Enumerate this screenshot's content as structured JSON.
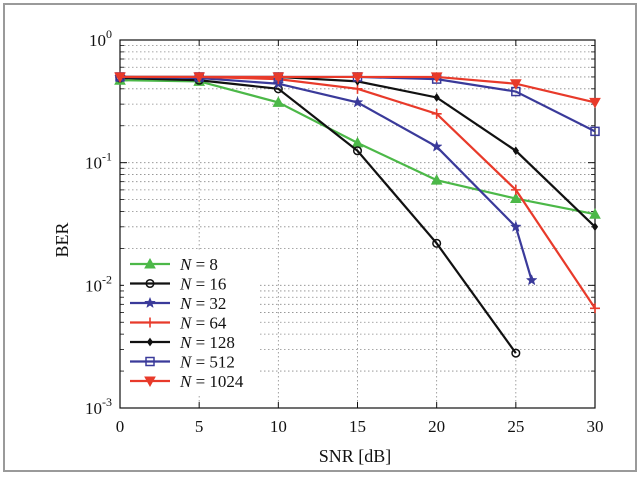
{
  "chart_data": {
    "type": "line",
    "xlabel": "SNR [dB]",
    "ylabel": "BER",
    "xlim": [
      0,
      30
    ],
    "ylim": [
      0.001,
      1
    ],
    "yscale": "log",
    "grid": true,
    "legend_position": "bottom-left",
    "x_ticks": [
      "0",
      "5",
      "10",
      "15",
      "20",
      "25",
      "30"
    ],
    "y_ticks": [
      {
        "base": "10",
        "exp": "0"
      },
      {
        "base": "10",
        "exp": "-1"
      },
      {
        "base": "10",
        "exp": "-2"
      },
      {
        "base": "10",
        "exp": "-3"
      }
    ],
    "series": [
      {
        "name_var": "N",
        "name_value": "= 8",
        "color": "#4cb848",
        "marker": "triangle-up",
        "x": [
          0,
          5,
          10,
          15,
          20,
          25,
          30
        ],
        "y": [
          0.47,
          0.46,
          0.31,
          0.145,
          0.072,
          0.051,
          0.038
        ]
      },
      {
        "name_var": "N",
        "name_value": "= 16",
        "color": "#111111",
        "marker": "circle",
        "x": [
          0,
          5,
          10,
          15,
          20,
          25
        ],
        "y": [
          0.49,
          0.47,
          0.4,
          0.125,
          0.022,
          0.0028
        ]
      },
      {
        "name_var": "N",
        "name_value": "= 32",
        "color": "#3a3a9a",
        "marker": "star",
        "x": [
          0,
          5,
          10,
          15,
          20,
          25,
          26
        ],
        "y": [
          0.5,
          0.49,
          0.44,
          0.31,
          0.135,
          0.03,
          0.011
        ]
      },
      {
        "name_var": "N",
        "name_value": "= 64",
        "color": "#e83a2a",
        "marker": "plus",
        "x": [
          0,
          5,
          10,
          15,
          20,
          25,
          30
        ],
        "y": [
          0.5,
          0.5,
          0.48,
          0.4,
          0.25,
          0.06,
          0.0065
        ]
      },
      {
        "name_var": "N",
        "name_value": "= 128",
        "color": "#111111",
        "marker": "diamond",
        "x": [
          0,
          5,
          10,
          15,
          20,
          25,
          30
        ],
        "y": [
          0.5,
          0.5,
          0.5,
          0.46,
          0.34,
          0.125,
          0.03
        ]
      },
      {
        "name_var": "N",
        "name_value": "= 512",
        "color": "#3a3a9a",
        "marker": "square",
        "x": [
          0,
          5,
          10,
          15,
          20,
          25,
          30
        ],
        "y": [
          0.5,
          0.5,
          0.5,
          0.5,
          0.48,
          0.38,
          0.18
        ]
      },
      {
        "name_var": "N",
        "name_value": "= 1024",
        "color": "#e83a2a",
        "marker": "triangle-down",
        "x": [
          0,
          5,
          10,
          15,
          20,
          25,
          30
        ],
        "y": [
          0.5,
          0.5,
          0.5,
          0.5,
          0.5,
          0.44,
          0.31
        ]
      }
    ]
  }
}
